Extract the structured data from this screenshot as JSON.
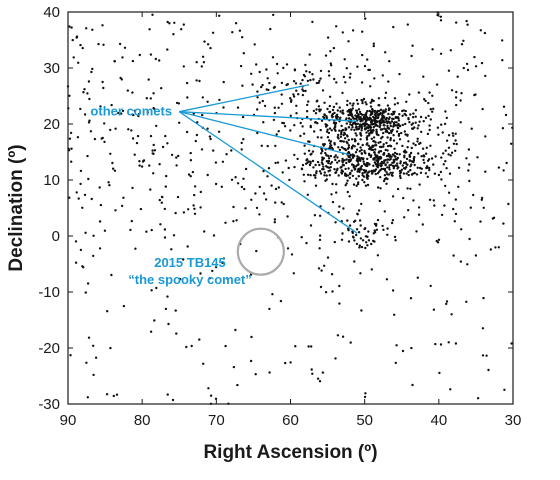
{
  "chart_data": {
    "type": "scatter",
    "title": "",
    "xlabel": "Right Ascension (º)",
    "ylabel": "Declination (º)",
    "xlim": [
      90,
      30
    ],
    "ylim": [
      -30,
      40
    ],
    "x_reversed": true,
    "x_ticks": [
      "90",
      "80",
      "70",
      "60",
      "50",
      "40",
      "30"
    ],
    "y_ticks": [
      "-30",
      "-20",
      "-10",
      "0",
      "10",
      "20",
      "30",
      "40"
    ],
    "grid": false,
    "colors": {
      "points": "#111111",
      "annotation": "#1a9ad6",
      "highlight_circle": "#aaaaaa"
    },
    "clusters": [
      {
        "name": "",
        "center": [
          49.5,
          20.5
        ],
        "spread": [
          3.5,
          1.6
        ],
        "count": 450
      },
      {
        "name": "",
        "center": [
          49.5,
          13.5
        ],
        "spread": [
          4.5,
          2.0
        ],
        "count": 500
      },
      {
        "name": "",
        "center": [
          59.0,
          26.0
        ],
        "spread": [
          4.0,
          2.5
        ],
        "count": 70
      },
      {
        "name": "",
        "center": [
          50.0,
          0.5
        ],
        "spread": [
          2.0,
          2.0
        ],
        "count": 55
      }
    ],
    "background_points": 700,
    "annotations": [
      {
        "text": "other comets",
        "anchor": [
          75.0,
          22.2
        ],
        "targets": [
          [
            57.5,
            27.0
          ],
          [
            51.0,
            20.5
          ],
          [
            52.0,
            14.5
          ],
          [
            51.0,
            0.5
          ]
        ]
      },
      {
        "text_lines": [
          "2015 TB145",
          "“the spooky comet”"
        ],
        "circle_center": [
          64.0,
          -2.8
        ],
        "circle_radius_deg": 3.1
      }
    ]
  }
}
